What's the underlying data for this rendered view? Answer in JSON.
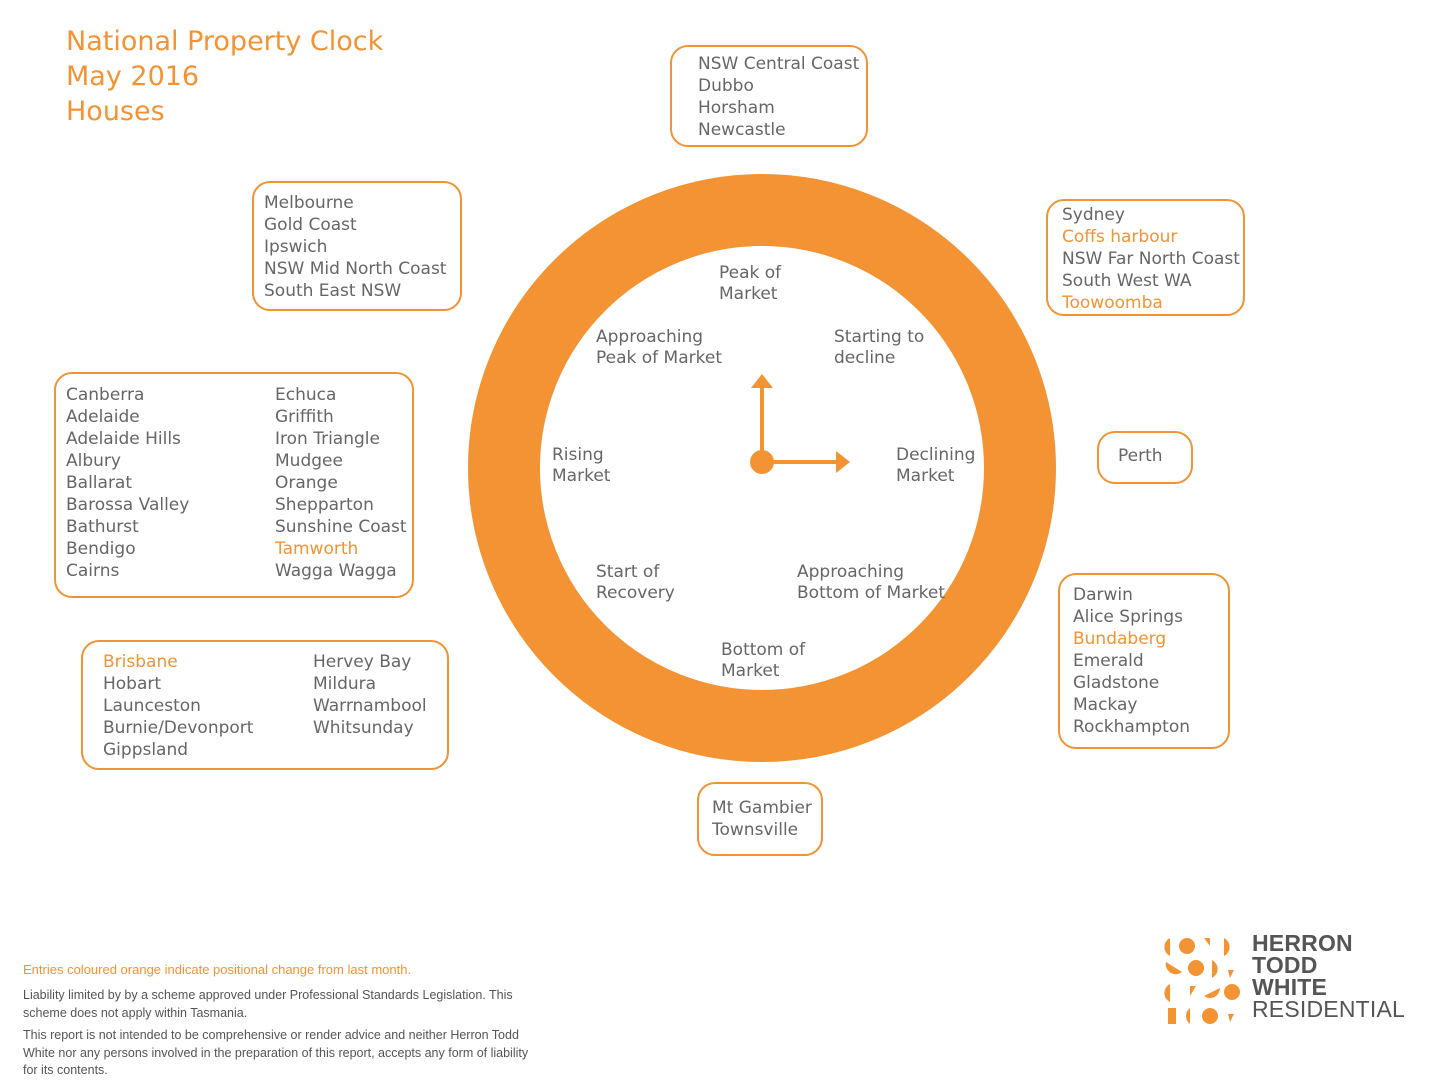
{
  "title": {
    "line1": "National Property Clock",
    "line2": "May 2016",
    "line3": "Houses"
  },
  "colors": {
    "accent": "#f39333",
    "text": "#666666"
  },
  "clock": {
    "positions": {
      "peak": [
        "Peak of",
        "Market"
      ],
      "starting_decline": [
        "Starting to",
        "decline"
      ],
      "declining": [
        "Declining",
        "Market"
      ],
      "approaching_bottom": [
        "Approaching",
        "Bottom of Market"
      ],
      "bottom": [
        "Bottom of",
        "Market"
      ],
      "start_recovery": [
        "Start of",
        "Recovery"
      ],
      "rising": [
        "Rising",
        "Market"
      ],
      "approaching_peak": [
        "Approaching",
        "Peak of Market"
      ]
    }
  },
  "groups": {
    "peak": [
      {
        "name": "NSW Central Coast",
        "changed": false
      },
      {
        "name": "Dubbo",
        "changed": false
      },
      {
        "name": "Horsham",
        "changed": false
      },
      {
        "name": "Newcastle",
        "changed": false
      }
    ],
    "starting_decline": [
      {
        "name": "Sydney",
        "changed": false
      },
      {
        "name": "Coffs harbour",
        "changed": true
      },
      {
        "name": "NSW Far North Coast",
        "changed": false
      },
      {
        "name": "South West WA",
        "changed": false
      },
      {
        "name": "Toowoomba",
        "changed": true
      }
    ],
    "declining": [
      {
        "name": "Perth",
        "changed": false
      }
    ],
    "approaching_bottom": [
      {
        "name": "Darwin",
        "changed": false
      },
      {
        "name": "Alice Springs",
        "changed": false
      },
      {
        "name": "Bundaberg",
        "changed": true
      },
      {
        "name": "Emerald",
        "changed": false
      },
      {
        "name": "Gladstone",
        "changed": false
      },
      {
        "name": "Mackay",
        "changed": false
      },
      {
        "name": "Rockhampton",
        "changed": false
      }
    ],
    "bottom": [
      {
        "name": "Mt Gambier",
        "changed": false
      },
      {
        "name": "Townsville",
        "changed": false
      }
    ],
    "start_recovery": {
      "col1": [
        {
          "name": "Brisbane",
          "changed": true
        },
        {
          "name": "Hobart",
          "changed": false
        },
        {
          "name": "Launceston",
          "changed": false
        },
        {
          "name": "Burnie/Devonport",
          "changed": false
        },
        {
          "name": "Gippsland",
          "changed": false
        }
      ],
      "col2": [
        {
          "name": "Hervey Bay",
          "changed": false
        },
        {
          "name": "Mildura",
          "changed": false
        },
        {
          "name": "Warrnambool",
          "changed": false
        },
        {
          "name": "Whitsunday",
          "changed": false
        }
      ]
    },
    "rising": {
      "col1": [
        {
          "name": "Canberra",
          "changed": false
        },
        {
          "name": "Adelaide",
          "changed": false
        },
        {
          "name": "Adelaide Hills",
          "changed": false
        },
        {
          "name": "Albury",
          "changed": false
        },
        {
          "name": "Ballarat",
          "changed": false
        },
        {
          "name": "Barossa Valley",
          "changed": false
        },
        {
          "name": "Bathurst",
          "changed": false
        },
        {
          "name": "Bendigo",
          "changed": false
        },
        {
          "name": "Cairns",
          "changed": false
        }
      ],
      "col2": [
        {
          "name": "Echuca",
          "changed": false
        },
        {
          "name": "Griffith",
          "changed": false
        },
        {
          "name": "Iron Triangle",
          "changed": false
        },
        {
          "name": "Mudgee",
          "changed": false
        },
        {
          "name": "Orange",
          "changed": false
        },
        {
          "name": "Shepparton",
          "changed": false
        },
        {
          "name": "Sunshine Coast",
          "changed": false
        },
        {
          "name": "Tamworth",
          "changed": true
        },
        {
          "name": "Wagga Wagga",
          "changed": false
        }
      ]
    },
    "approaching_peak": [
      {
        "name": "Melbourne",
        "changed": false
      },
      {
        "name": "Gold Coast",
        "changed": false
      },
      {
        "name": "Ipswich",
        "changed": false
      },
      {
        "name": "NSW Mid North Coast",
        "changed": false
      },
      {
        "name": "South East NSW",
        "changed": false
      }
    ]
  },
  "footer": {
    "note": "Entries coloured orange indicate positional change from last month.",
    "disclaimer1": "Liability limited by by a scheme approved under Professional Standards Legislation. This scheme does not apply within Tasmania.",
    "disclaimer2": "This report is not intended to be comprehensive or render advice and neither Herron Todd White nor any persons involved in the preparation of this report, accepts any form of liability for its contents."
  },
  "logo": {
    "line1": "HERRON",
    "line2": "TODD",
    "line3": "WHITE",
    "line4": "RESIDENTIAL"
  }
}
